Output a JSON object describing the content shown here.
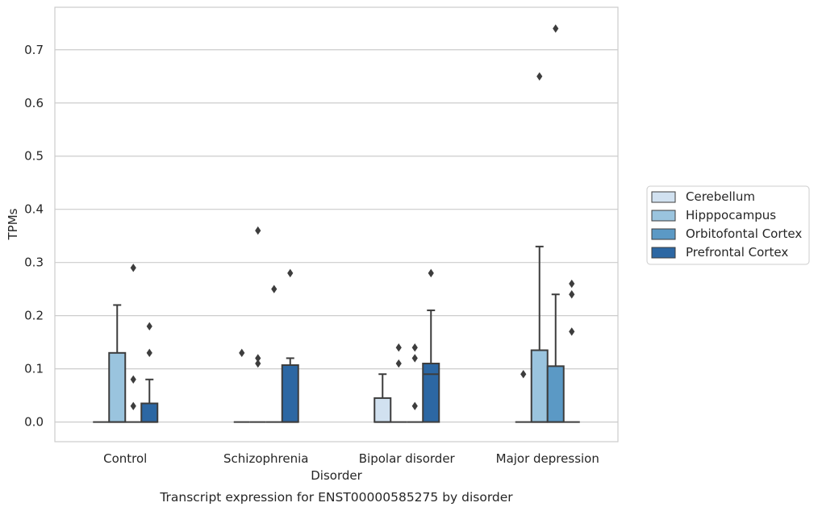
{
  "chart_data": {
    "type": "boxplot",
    "caption": "Transcript expression for ENST00000585275 by disorder",
    "xlabel": "Disorder",
    "ylabel": "TPMs",
    "ylim": [
      -0.037,
      0.78
    ],
    "yticks": [
      "0.0",
      "0.1",
      "0.2",
      "0.3",
      "0.4",
      "0.5",
      "0.6",
      "0.7"
    ],
    "grid": "horizontal",
    "legend_position": "right",
    "categories": [
      "Control",
      "Schizophrenia",
      "Bipolar disorder",
      "Major depression"
    ],
    "series": [
      {
        "name": "Cerebellum",
        "color": "#d1e1f0",
        "boxes": [
          {
            "q1": 0,
            "median": 0,
            "q3": 0,
            "whislo": 0,
            "whishi": 0,
            "fliers": []
          },
          {
            "q1": 0,
            "median": 0,
            "q3": 0,
            "whislo": 0,
            "whishi": 0,
            "fliers": [
              0.13
            ]
          },
          {
            "q1": 0,
            "median": 0,
            "q3": 0.045,
            "whislo": 0,
            "whishi": 0.09,
            "fliers": []
          },
          {
            "q1": 0,
            "median": 0,
            "q3": 0,
            "whislo": 0,
            "whishi": 0,
            "fliers": [
              0.09
            ]
          }
        ]
      },
      {
        "name": "Hipppocampus",
        "color": "#9ac4de",
        "boxes": [
          {
            "q1": 0,
            "median": 0,
            "q3": 0.13,
            "whislo": 0,
            "whishi": 0.22,
            "fliers": []
          },
          {
            "q1": 0,
            "median": 0,
            "q3": 0,
            "whislo": 0,
            "whishi": 0,
            "fliers": [
              0.36,
              0.12,
              0.11
            ]
          },
          {
            "q1": 0,
            "median": 0,
            "q3": 0,
            "whislo": 0,
            "whishi": 0,
            "fliers": [
              0.14,
              0.11
            ]
          },
          {
            "q1": 0,
            "median": 0,
            "q3": 0.135,
            "whislo": 0,
            "whishi": 0.33,
            "fliers": [
              0.65
            ]
          }
        ]
      },
      {
        "name": "Orbitofontal Cortex",
        "color": "#5b99c5",
        "boxes": [
          {
            "q1": 0,
            "median": 0,
            "q3": 0,
            "whislo": 0,
            "whishi": 0,
            "fliers": [
              0.29,
              0.08,
              0.03
            ]
          },
          {
            "q1": 0,
            "median": 0,
            "q3": 0,
            "whislo": 0,
            "whishi": 0,
            "fliers": [
              0.25
            ]
          },
          {
            "q1": 0,
            "median": 0,
            "q3": 0,
            "whislo": 0,
            "whishi": 0,
            "fliers": [
              0.14,
              0.12,
              0.03
            ]
          },
          {
            "q1": 0,
            "median": 0,
            "q3": 0.105,
            "whislo": 0,
            "whishi": 0.24,
            "fliers": [
              0.74
            ]
          }
        ]
      },
      {
        "name": "Prefrontal Cortex",
        "color": "#2c67a3",
        "boxes": [
          {
            "q1": 0,
            "median": 0,
            "q3": 0.035,
            "whislo": 0,
            "whishi": 0.08,
            "fliers": [
              0.18,
              0.13
            ]
          },
          {
            "q1": 0,
            "median": 0,
            "q3": 0.107,
            "whislo": 0,
            "whishi": 0.12,
            "fliers": [
              0.28
            ]
          },
          {
            "q1": 0,
            "median": 0.09,
            "q3": 0.11,
            "whislo": 0,
            "whishi": 0.21,
            "fliers": [
              0.28
            ]
          },
          {
            "q1": 0,
            "median": 0,
            "q3": 0,
            "whislo": 0,
            "whishi": 0,
            "fliers": [
              0.26,
              0.24,
              0.17
            ]
          }
        ]
      }
    ]
  }
}
